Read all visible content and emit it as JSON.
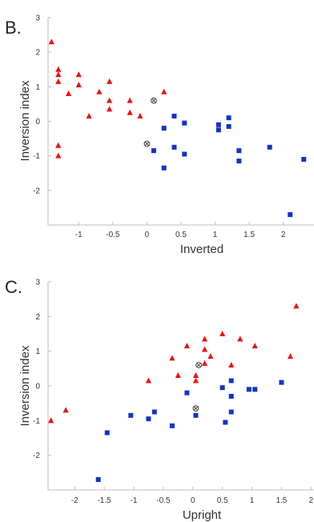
{
  "panels": [
    {
      "letter": "B."
    },
    {
      "letter": "C."
    }
  ],
  "colors": {
    "series_triangle": "#ee1111",
    "series_square": "#1133cc",
    "series_circle_x": "#444444",
    "axis": "#bdbdbd",
    "text": "#333333"
  },
  "chart_data": [
    {
      "type": "scatter",
      "title": "",
      "xlabel": "Inverted",
      "ylabel": "Inversion index",
      "xlim": [
        -1.45,
        2.45
      ],
      "ylim": [
        -3.0,
        3.0
      ],
      "xticks": [
        -1,
        -0.5,
        0,
        0.5,
        1,
        1.5,
        2
      ],
      "xtick_labels": [
        "-1",
        "-0.5",
        "0",
        "0.5",
        "1",
        "1.5",
        "2"
      ],
      "yticks": [
        -2,
        -1,
        0,
        1,
        2,
        3
      ],
      "ytick_labels": [
        "-2",
        "-1",
        "0",
        "1",
        "2",
        "3"
      ],
      "grid": false,
      "legend": "none",
      "series": [
        {
          "marker": "triangle",
          "points": [
            [
              -1.4,
              2.3
            ],
            [
              -1.3,
              1.5
            ],
            [
              -1.3,
              1.35
            ],
            [
              -1.3,
              1.15
            ],
            [
              -1.15,
              0.8
            ],
            [
              -1.0,
              1.35
            ],
            [
              -1.0,
              1.05
            ],
            [
              -0.85,
              0.15
            ],
            [
              -0.7,
              0.85
            ],
            [
              -0.55,
              1.15
            ],
            [
              -0.55,
              0.6
            ],
            [
              -0.55,
              0.35
            ],
            [
              -0.25,
              0.6
            ],
            [
              -0.25,
              0.25
            ],
            [
              -0.1,
              0.15
            ],
            [
              0.25,
              0.85
            ],
            [
              -1.3,
              -0.7
            ],
            [
              -1.3,
              -1.0
            ]
          ]
        },
        {
          "marker": "square",
          "points": [
            [
              0.1,
              -0.85
            ],
            [
              0.25,
              -0.2
            ],
            [
              0.25,
              -1.35
            ],
            [
              0.4,
              0.15
            ],
            [
              0.4,
              -0.75
            ],
            [
              0.55,
              -0.05
            ],
            [
              0.55,
              -0.95
            ],
            [
              1.05,
              -0.1
            ],
            [
              1.05,
              -0.25
            ],
            [
              1.2,
              0.1
            ],
            [
              1.2,
              -0.15
            ],
            [
              1.35,
              -0.85
            ],
            [
              1.35,
              -1.15
            ],
            [
              1.8,
              -0.75
            ],
            [
              2.1,
              -2.7
            ],
            [
              2.3,
              -1.1
            ]
          ]
        },
        {
          "marker": "circle-x",
          "points": [
            [
              0.1,
              0.6
            ],
            [
              0.0,
              -0.65
            ]
          ]
        }
      ]
    },
    {
      "type": "scatter",
      "title": "",
      "xlabel": "Upright",
      "ylabel": "Inversion index",
      "xlim": [
        -2.45,
        2.05
      ],
      "ylim": [
        -3.0,
        3.0
      ],
      "xticks": [
        -2,
        -1.5,
        -1,
        -0.5,
        0,
        0.5,
        1,
        1.5,
        2
      ],
      "xtick_labels": [
        "-2",
        "-1.5",
        "-1",
        "-0.5",
        "0",
        "0.5",
        "1",
        "1.5",
        "2"
      ],
      "yticks": [
        -2,
        -1,
        0,
        1,
        2,
        3
      ],
      "ytick_labels": [
        "-2",
        "-1",
        "0",
        "1",
        "2",
        "3"
      ],
      "grid": false,
      "legend": "none",
      "series": [
        {
          "marker": "triangle",
          "points": [
            [
              -2.4,
              -1.0
            ],
            [
              -2.15,
              -0.7
            ],
            [
              -0.75,
              0.15
            ],
            [
              -0.35,
              0.8
            ],
            [
              -0.25,
              0.3
            ],
            [
              -0.1,
              1.15
            ],
            [
              0.05,
              0.15
            ],
            [
              0.05,
              0.3
            ],
            [
              0.2,
              1.35
            ],
            [
              0.2,
              1.05
            ],
            [
              0.2,
              0.65
            ],
            [
              0.3,
              0.85
            ],
            [
              0.5,
              1.5
            ],
            [
              0.65,
              0.6
            ],
            [
              0.8,
              1.35
            ],
            [
              1.05,
              1.15
            ],
            [
              1.65,
              0.85
            ],
            [
              1.75,
              2.3
            ]
          ]
        },
        {
          "marker": "square",
          "points": [
            [
              -1.6,
              -2.7
            ],
            [
              -1.45,
              -1.35
            ],
            [
              -1.05,
              -0.85
            ],
            [
              -0.75,
              -0.95
            ],
            [
              -0.65,
              -0.75
            ],
            [
              -0.35,
              -1.15
            ],
            [
              -0.1,
              -0.2
            ],
            [
              0.05,
              -0.85
            ],
            [
              0.5,
              -0.05
            ],
            [
              0.55,
              -1.05
            ],
            [
              0.65,
              0.15
            ],
            [
              0.65,
              -0.3
            ],
            [
              0.65,
              -0.75
            ],
            [
              0.95,
              -0.1
            ],
            [
              1.05,
              -0.1
            ],
            [
              1.5,
              0.1
            ]
          ]
        },
        {
          "marker": "circle-x",
          "points": [
            [
              0.1,
              0.6
            ],
            [
              0.05,
              -0.65
            ]
          ]
        }
      ]
    }
  ]
}
